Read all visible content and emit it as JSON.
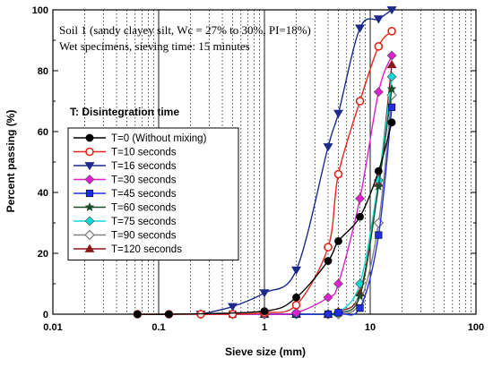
{
  "chart_data": {
    "type": "line",
    "xlabel": "Sieve size (mm)",
    "ylabel": "Percent passing  (%)",
    "xscale": "log",
    "xlim": [
      0.01,
      100
    ],
    "ylim": [
      0,
      100
    ],
    "x_ticks": [
      0.01,
      0.1,
      1,
      10,
      100
    ],
    "x_tick_labels": [
      "0.01",
      "0.1",
      "1",
      "10",
      "100"
    ],
    "y_ticks": [
      0,
      20,
      40,
      60,
      80,
      100
    ],
    "y_tick_labels": [
      "0",
      "20",
      "40",
      "60",
      "80",
      "100"
    ],
    "grid": "vertical dotted minor grid on log x-axis; major decade lines solid",
    "annotations": [
      "Soil 1 (sandy clayey silt, Wc = 27% to 30%, PI=18%)",
      "Wet specimens, sieving time: 15 minutes",
      "T: Disintegration time"
    ],
    "legend_position": "center-left",
    "series": [
      {
        "name": "T=0 (Without mixing)",
        "color": "#000000",
        "marker": "filled-circle",
        "x": [
          0.063,
          0.125,
          1,
          2,
          4,
          5,
          8,
          12,
          16
        ],
        "y": [
          0,
          0,
          1,
          5.5,
          17.5,
          24,
          32,
          47,
          63
        ]
      },
      {
        "name": "T=10 seconds",
        "color": "#e8251b",
        "marker": "open-circle",
        "x": [
          0.063,
          0.125,
          0.25,
          0.5,
          1,
          2,
          4,
          5,
          8,
          12,
          16
        ],
        "y": [
          0,
          0,
          0,
          0,
          0.5,
          3,
          22,
          46,
          70,
          88,
          93
        ]
      },
      {
        "name": "T=16 seconds",
        "color": "#1c2a8c",
        "marker": "filled-triangle-down",
        "x": [
          0.25,
          0.5,
          1,
          2,
          4,
          5,
          8,
          12,
          16
        ],
        "y": [
          0,
          2.5,
          7,
          14.5,
          55,
          66,
          94,
          97,
          100
        ]
      },
      {
        "name": "T=30 seconds",
        "color": "#e020d0",
        "marker": "filled-diamond",
        "x": [
          0.25,
          0.5,
          1,
          2,
          4,
          5,
          8,
          12,
          16
        ],
        "y": [
          0,
          0,
          0,
          0.5,
          5.5,
          10,
          38,
          73,
          85
        ]
      },
      {
        "name": "T=45 seconds",
        "color": "#2030e0",
        "marker": "filled-square",
        "x": [
          0.5,
          1,
          2,
          4,
          5,
          8,
          12,
          16
        ],
        "y": [
          0,
          0,
          0,
          0,
          0.5,
          2,
          26,
          68
        ]
      },
      {
        "name": "T=60 seconds",
        "color": "#1a4a2a",
        "marker": "filled-star",
        "x": [
          1,
          2,
          4,
          5,
          8,
          12,
          16
        ],
        "y": [
          0,
          0,
          0,
          0.5,
          6,
          42,
          74
        ]
      },
      {
        "name": "T=75 seconds",
        "color": "#10d8d8",
        "marker": "filled-diamond",
        "x": [
          0.5,
          1,
          2,
          4,
          5,
          8,
          12,
          16
        ],
        "y": [
          0,
          0,
          0,
          0,
          0.5,
          10,
          44,
          78
        ]
      },
      {
        "name": "T=90 seconds",
        "color": "#808080",
        "marker": "open-diamond",
        "x": [
          1,
          2,
          4,
          5,
          8,
          12,
          16
        ],
        "y": [
          0,
          0,
          0,
          0,
          4,
          30,
          72
        ]
      },
      {
        "name": "T=120 seconds",
        "color": "#8a1a1a",
        "marker": "filled-triangle-up",
        "x": [
          1,
          2,
          4,
          5,
          8,
          12,
          16
        ],
        "y": [
          0,
          0,
          0,
          1,
          7,
          43,
          82
        ]
      }
    ]
  }
}
